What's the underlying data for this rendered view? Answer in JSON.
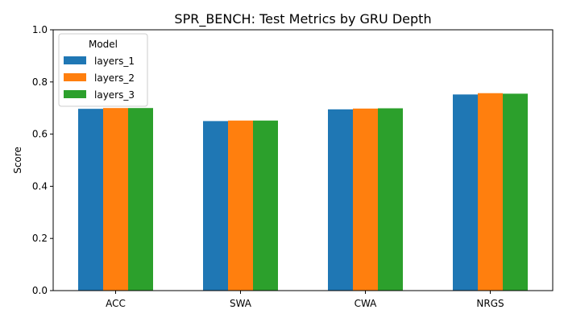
{
  "chart_data": {
    "type": "bar",
    "title": "SPR_BENCH: Test Metrics by GRU Depth",
    "xlabel": "",
    "ylabel": "Score",
    "ylim": [
      0,
      1.0
    ],
    "yticks": [
      "0.0",
      "0.2",
      "0.4",
      "0.6",
      "0.8",
      "1.0"
    ],
    "categories": [
      "ACC",
      "SWA",
      "CWA",
      "NRGS"
    ],
    "series": [
      {
        "name": "layers_1",
        "color": "#1f77b4",
        "values": [
          0.697,
          0.65,
          0.695,
          0.752
        ]
      },
      {
        "name": "layers_2",
        "color": "#ff7f0e",
        "values": [
          0.7,
          0.652,
          0.698,
          0.757
        ]
      },
      {
        "name": "layers_3",
        "color": "#2ca02c",
        "values": [
          0.7,
          0.652,
          0.699,
          0.755
        ]
      }
    ],
    "legend": {
      "title": "Model",
      "position": "top-left"
    },
    "grid": false
  }
}
